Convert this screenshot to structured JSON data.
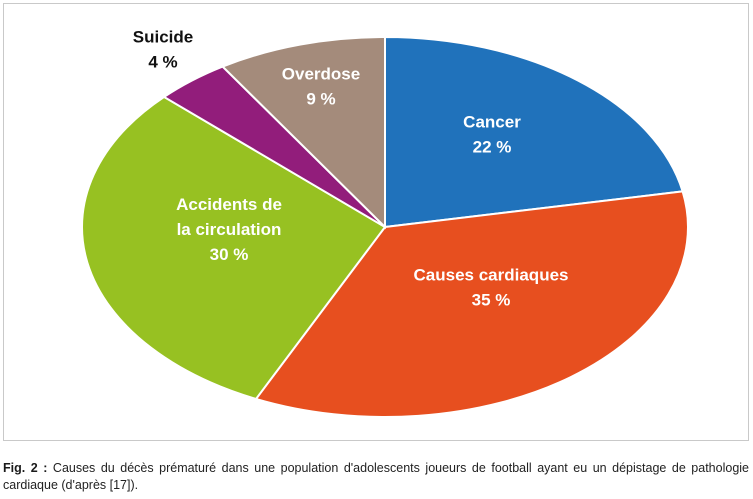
{
  "chart_data": {
    "type": "pie",
    "title": "",
    "start": "12 o'clock",
    "direction": "clockwise",
    "slices": [
      {
        "name": "Cancer",
        "value": 22,
        "label": "22 %",
        "color": "#2072bb",
        "text_color": "#ffffff"
      },
      {
        "name": "Causes cardiaques",
        "value": 35,
        "label": "35 %",
        "color": "#e74f1f",
        "text_color": "#ffffff"
      },
      {
        "name": "Accidents de la circulation",
        "name_lines": [
          "Accidents de",
          "la circulation"
        ],
        "value": 30,
        "label": "30 %",
        "color": "#97c122",
        "text_color": "#ffffff"
      },
      {
        "name": "Suicide",
        "value": 4,
        "label": "4 %",
        "color": "#921d7b",
        "text_color": "#111111",
        "outside": true
      },
      {
        "name": "Overdose",
        "value": 9,
        "label": "9 %",
        "color": "#a48b7b",
        "text_color": "#ffffff"
      }
    ]
  },
  "caption": {
    "fig_label": "Fig. 2 :",
    "text": " Causes du décès prématuré dans une population d'adolescents joueurs de football ayant eu un dépistage de pathologie cardiaque (d'après [17])."
  }
}
